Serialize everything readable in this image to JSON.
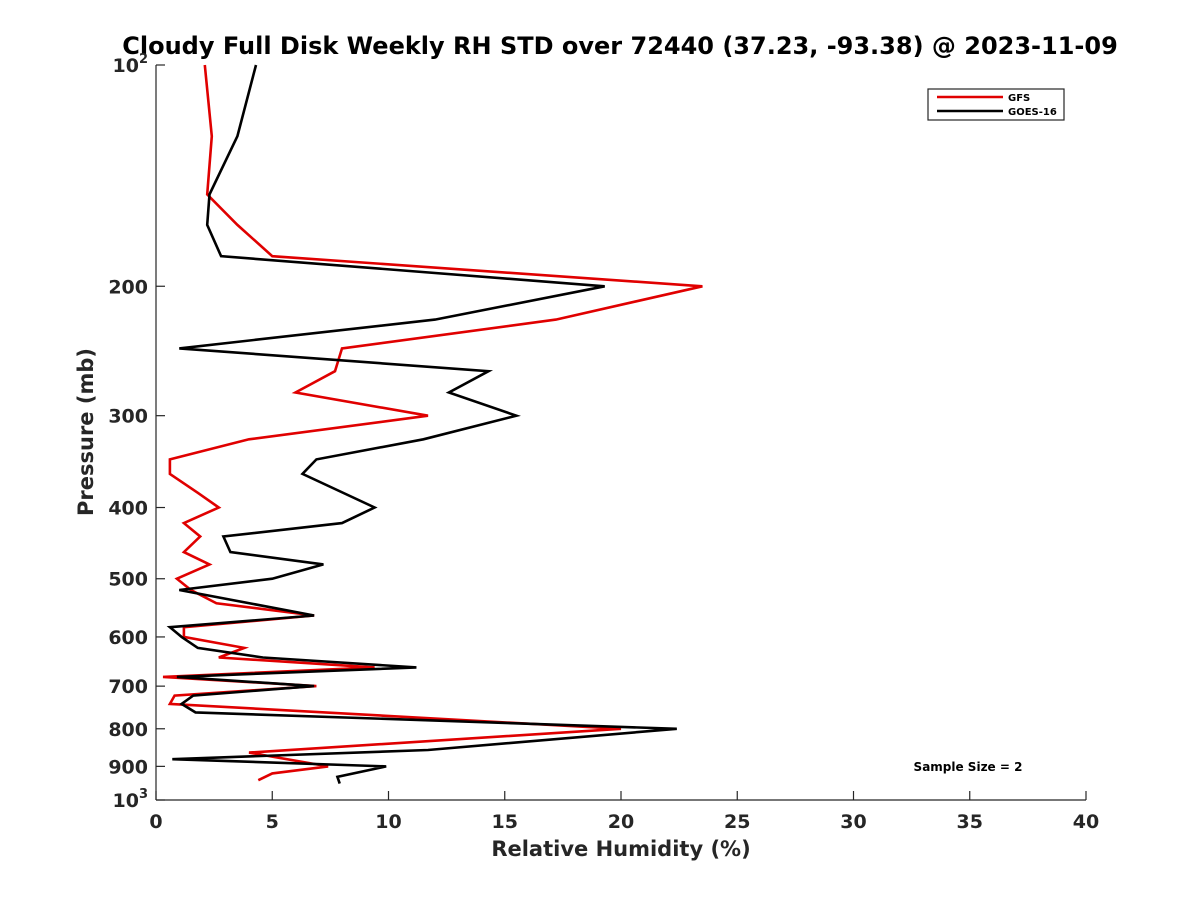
{
  "chart_data": {
    "type": "line",
    "title": "Cloudy Full Disk Weekly RH STD over 72440 (37.23, -93.38) @ 2023-11-09",
    "xlabel": "Relative Humidity (%)",
    "ylabel": "Pressure (mb)",
    "xlim": [
      0,
      40
    ],
    "ylim": [
      100,
      1000
    ],
    "y_scale": "log",
    "y_reversed": true,
    "grid": false,
    "legend_position": "top-right",
    "x_ticks": [
      "0",
      "5",
      "10",
      "15",
      "20",
      "25",
      "30",
      "35",
      "40"
    ],
    "x_tick_values": [
      0,
      5,
      10,
      15,
      20,
      25,
      30,
      35,
      40
    ],
    "y_ticks": [
      {
        "value": 100,
        "base": "10",
        "exp": "2"
      },
      {
        "value": 200,
        "label": "200"
      },
      {
        "value": 300,
        "label": "300"
      },
      {
        "value": 400,
        "label": "400"
      },
      {
        "value": 500,
        "label": "500"
      },
      {
        "value": 600,
        "label": "600"
      },
      {
        "value": 700,
        "label": "700"
      },
      {
        "value": 800,
        "label": "800"
      },
      {
        "value": 900,
        "label": "900"
      },
      {
        "value": 1000,
        "base": "10",
        "exp": "3"
      }
    ],
    "annotation": "Sample Size = 2",
    "series": [
      {
        "name": "GFS",
        "color": "#e00000",
        "points": [
          [
            2.1,
            100
          ],
          [
            2.4,
            125
          ],
          [
            2.2,
            150
          ],
          [
            3.5,
            165
          ],
          [
            5.0,
            182
          ],
          [
            23.5,
            200
          ],
          [
            17.2,
            222
          ],
          [
            8.0,
            243
          ],
          [
            7.7,
            261
          ],
          [
            6.0,
            279
          ],
          [
            11.7,
            300
          ],
          [
            4.0,
            323
          ],
          [
            0.6,
            344
          ],
          [
            0.6,
            360
          ],
          [
            1.8,
            382
          ],
          [
            2.7,
            400
          ],
          [
            1.2,
            420
          ],
          [
            1.9,
            438
          ],
          [
            1.2,
            460
          ],
          [
            2.3,
            478
          ],
          [
            0.9,
            500
          ],
          [
            1.5,
            518
          ],
          [
            2.6,
            540
          ],
          [
            6.8,
            561
          ],
          [
            1.2,
            582
          ],
          [
            1.2,
            600
          ],
          [
            3.8,
            621
          ],
          [
            2.7,
            640
          ],
          [
            9.4,
            660
          ],
          [
            0.3,
            680
          ],
          [
            6.9,
            700
          ],
          [
            0.8,
            721
          ],
          [
            0.6,
            740
          ],
          [
            20.0,
            800
          ],
          [
            4.0,
            862
          ],
          [
            7.4,
            900
          ],
          [
            5.0,
            920
          ],
          [
            4.4,
            940
          ]
        ]
      },
      {
        "name": "GOES-16",
        "color": "#000000",
        "points": [
          [
            4.3,
            100
          ],
          [
            3.5,
            125
          ],
          [
            2.3,
            150
          ],
          [
            2.2,
            165
          ],
          [
            2.8,
            182
          ],
          [
            19.3,
            200
          ],
          [
            12.0,
            222
          ],
          [
            1.0,
            243
          ],
          [
            14.3,
            261
          ],
          [
            12.6,
            279
          ],
          [
            15.5,
            300
          ],
          [
            11.5,
            323
          ],
          [
            6.9,
            344
          ],
          [
            6.3,
            360
          ],
          [
            9.4,
            400
          ],
          [
            8.0,
            420
          ],
          [
            2.9,
            438
          ],
          [
            3.2,
            460
          ],
          [
            7.2,
            478
          ],
          [
            5.0,
            500
          ],
          [
            1.0,
            518
          ],
          [
            6.8,
            561
          ],
          [
            0.6,
            582
          ],
          [
            1.1,
            600
          ],
          [
            1.8,
            621
          ],
          [
            4.6,
            640
          ],
          [
            11.2,
            660
          ],
          [
            0.9,
            680
          ],
          [
            6.8,
            700
          ],
          [
            1.6,
            721
          ],
          [
            1.1,
            740
          ],
          [
            1.7,
            760
          ],
          [
            22.4,
            800
          ],
          [
            11.7,
            855
          ],
          [
            0.7,
            880
          ],
          [
            9.9,
            900
          ],
          [
            7.8,
            930
          ],
          [
            7.9,
            950
          ]
        ]
      }
    ]
  }
}
